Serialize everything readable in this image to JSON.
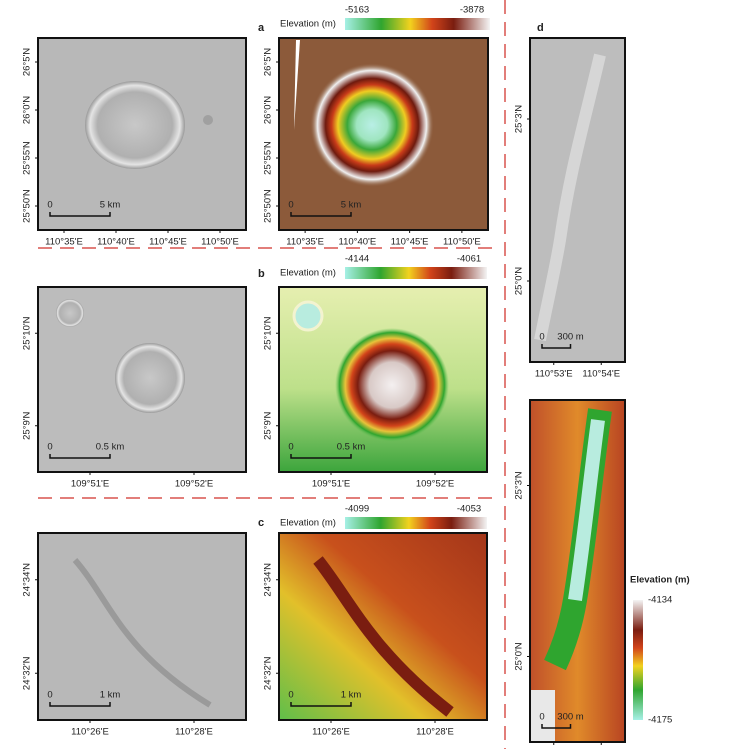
{
  "panels": [
    {
      "label": "a",
      "colorbar": {
        "title": "Elevation (m)",
        "min": -5163,
        "max": -3878
      },
      "lat_ticks": [
        "26°5'N",
        "26°0'N",
        "25°55'N",
        "25°50'N"
      ],
      "lon_ticks": [
        "110°35'E",
        "110°40'E",
        "110°45'E",
        "110°50'E"
      ],
      "scale_bar": {
        "start": "0",
        "end": "5 km"
      }
    },
    {
      "label": "b",
      "colorbar": {
        "title": "Elevation (m)",
        "min": -4144,
        "max": -4061
      },
      "lat_ticks": [
        "25°10'N",
        "25°9'N"
      ],
      "lon_ticks": [
        "109°51'E",
        "109°52'E"
      ],
      "scale_bar": {
        "start": "0",
        "end": "0.5 km"
      }
    },
    {
      "label": "c",
      "colorbar": {
        "title": "Elevation (m)",
        "min": -4099,
        "max": -4053
      },
      "lat_ticks": [
        "24°34'N",
        "24°32'N"
      ],
      "lon_ticks": [
        "110°26'E",
        "110°28'E"
      ],
      "scale_bar": {
        "start": "0",
        "end": "1 km"
      }
    },
    {
      "label": "d",
      "colorbar": {
        "title": "Elevation (m)",
        "max": -4134,
        "min": -4175
      },
      "lat_ticks": [
        "25°3'N",
        "25°0'N"
      ],
      "lon_ticks": [
        "110°53'E",
        "110°54'E"
      ],
      "scale_bar": {
        "start": "0",
        "end": "300 m"
      }
    }
  ]
}
